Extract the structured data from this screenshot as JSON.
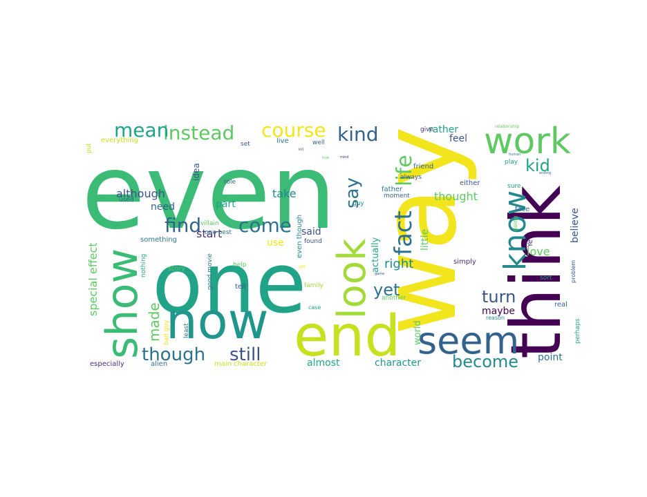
{
  "palette": {
    "yellow": "#f2e51d",
    "lime": "#c7e020",
    "light-green": "#a2da37",
    "green": "#5ec962",
    "mid-green": "#3bbb75",
    "sea-green": "#20a386",
    "teal": "#1f958b",
    "blue-teal": "#23898e",
    "blue": "#2c728e",
    "dark-blue": "#33638d",
    "indigo": "#3b528b",
    "violet": "#472d7b",
    "purple": "#440154"
  },
  "words": [
    {
      "text": "even",
      "color": "mid-green"
    },
    {
      "text": "one",
      "color": "sea-green"
    },
    {
      "text": "way",
      "color": "yellow"
    },
    {
      "text": "think",
      "color": "purple"
    },
    {
      "text": "now",
      "color": "teal"
    },
    {
      "text": "end",
      "color": "lime"
    },
    {
      "text": "show",
      "color": "mid-green"
    },
    {
      "text": "look",
      "color": "light-green"
    },
    {
      "text": "work",
      "color": "green"
    },
    {
      "text": "seem",
      "color": "dark-blue"
    },
    {
      "text": "know",
      "color": "blue-teal"
    },
    {
      "text": "fact",
      "color": "blue"
    },
    {
      "text": "life",
      "color": "green"
    },
    {
      "text": "course",
      "color": "yellow"
    },
    {
      "text": "instead",
      "color": "green"
    },
    {
      "text": "mean",
      "color": "sea-green"
    },
    {
      "text": "kind",
      "color": "dark-blue"
    },
    {
      "text": "kid",
      "color": "sea-green"
    },
    {
      "text": "find",
      "color": "dark-blue"
    },
    {
      "text": "come",
      "color": "blue"
    },
    {
      "text": "say",
      "color": "blue"
    },
    {
      "text": "still",
      "color": "indigo"
    },
    {
      "text": "though",
      "color": "blue"
    },
    {
      "text": "become",
      "color": "blue-teal"
    },
    {
      "text": "turn",
      "color": "indigo"
    },
    {
      "text": "yet",
      "color": "blue"
    },
    {
      "text": "made",
      "color": "green"
    },
    {
      "text": "right",
      "color": "blue-teal"
    },
    {
      "text": "actually",
      "color": "sea-green"
    },
    {
      "text": "little",
      "color": "green"
    },
    {
      "text": "believe",
      "color": "indigo"
    },
    {
      "text": "love",
      "color": "green"
    },
    {
      "text": "thought",
      "color": "green"
    },
    {
      "text": "maybe",
      "color": "purple"
    },
    {
      "text": "feel",
      "color": "indigo"
    },
    {
      "text": "rather",
      "color": "sea-green"
    },
    {
      "text": "special effect",
      "color": "green"
    },
    {
      "text": "although",
      "color": "indigo"
    },
    {
      "text": "need",
      "color": "dark-blue"
    },
    {
      "text": "part",
      "color": "sea-green"
    },
    {
      "text": "take",
      "color": "blue-teal"
    },
    {
      "text": "start",
      "color": "violet"
    },
    {
      "text": "said",
      "color": "indigo"
    },
    {
      "text": "use",
      "color": "yellow"
    },
    {
      "text": "world",
      "color": "green"
    },
    {
      "text": "character",
      "color": "teal"
    },
    {
      "text": "almost",
      "color": "sea-green"
    },
    {
      "text": "point",
      "color": "blue"
    },
    {
      "text": "idea",
      "color": "indigo"
    },
    {
      "text": "everything",
      "color": "lime"
    },
    {
      "text": "especially",
      "color": "violet"
    },
    {
      "text": "alien",
      "color": "blue"
    },
    {
      "text": "main character",
      "color": "lime"
    },
    {
      "text": "bad guy",
      "color": "yellow"
    },
    {
      "text": "least",
      "color": "blue"
    },
    {
      "text": "story",
      "color": "green"
    },
    {
      "text": "good movie",
      "color": "blue"
    },
    {
      "text": "nothing",
      "color": "sea-green"
    },
    {
      "text": "something",
      "color": "blue"
    },
    {
      "text": "villain",
      "color": "green"
    },
    {
      "text": "one best",
      "color": "blue"
    },
    {
      "text": "role",
      "color": "dark-blue"
    },
    {
      "text": "used",
      "color": "dark-blue"
    },
    {
      "text": "put",
      "color": "lime"
    },
    {
      "text": "set",
      "color": "indigo"
    },
    {
      "text": "live",
      "color": "blue"
    },
    {
      "text": "well",
      "color": "dark-blue"
    },
    {
      "text": "even though",
      "color": "blue-teal"
    },
    {
      "text": "guy",
      "color": "blue-teal"
    },
    {
      "text": "moment",
      "color": "dark-blue"
    },
    {
      "text": "father",
      "color": "blue"
    },
    {
      "text": "always",
      "color": "indigo"
    },
    {
      "text": "friend",
      "color": "dark-blue"
    },
    {
      "text": "give",
      "color": "violet"
    },
    {
      "text": "either",
      "color": "indigo"
    },
    {
      "text": "play",
      "color": "sea-green"
    },
    {
      "text": "sure",
      "color": "sea-green"
    },
    {
      "text": "face",
      "color": "dark-blue"
    },
    {
      "text": "simply",
      "color": "violet"
    },
    {
      "text": "sort",
      "color": "sea-green"
    },
    {
      "text": "real",
      "color": "dark-blue"
    },
    {
      "text": "perhaps",
      "color": "sea-green"
    },
    {
      "text": "problem",
      "color": "indigo"
    },
    {
      "text": "reason",
      "color": "blue-teal"
    },
    {
      "text": "going",
      "color": "green"
    },
    {
      "text": "found",
      "color": "indigo"
    },
    {
      "text": "family",
      "color": "light-green"
    },
    {
      "text": "help",
      "color": "green"
    },
    {
      "text": "tell",
      "color": "indigo"
    },
    {
      "text": "case",
      "color": "sea-green"
    },
    {
      "text": "another",
      "color": "green"
    },
    {
      "text": "girl",
      "color": "yellow"
    },
    {
      "text": "relationship",
      "color": "green"
    },
    {
      "text": "human",
      "color": "blue"
    },
    {
      "text": "ending",
      "color": "dark-blue"
    },
    {
      "text": "kill",
      "color": "indigo"
    },
    {
      "text": "mind",
      "color": "violet"
    },
    {
      "text": "true",
      "color": "green"
    },
    {
      "text": "Ye",
      "color": "violet"
    },
    {
      "text": "game",
      "color": "indigo"
    }
  ]
}
